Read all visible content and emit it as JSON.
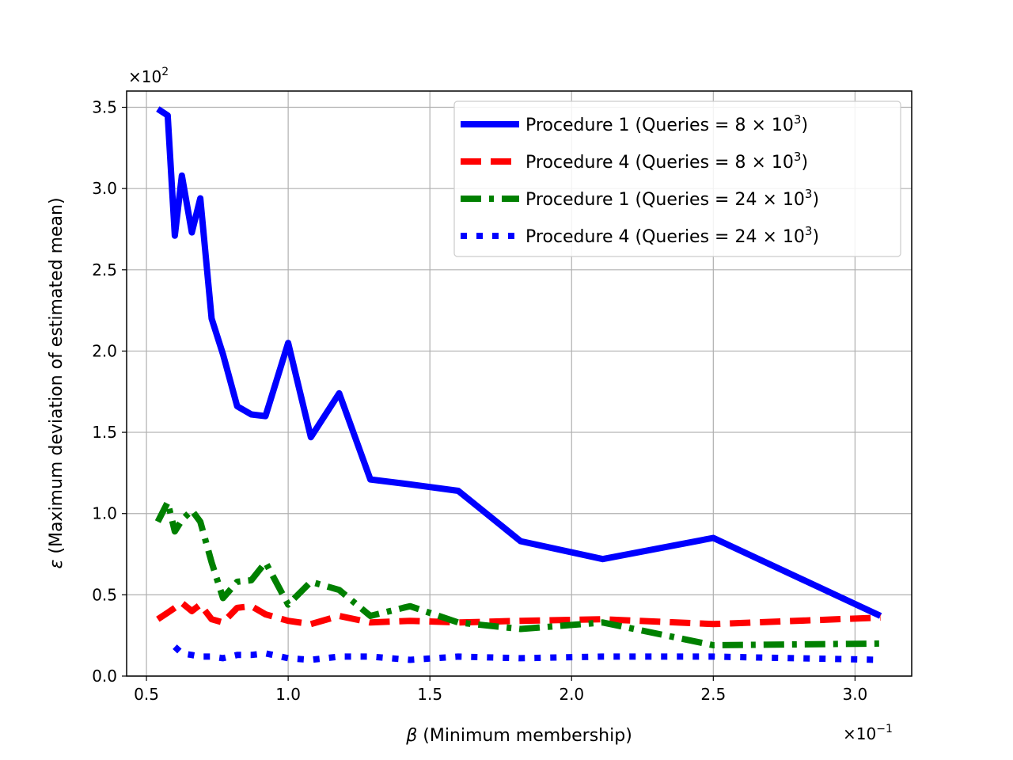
{
  "chart_data": {
    "type": "line",
    "xlabel_symbol": "β",
    "xlabel": "(Minimum membership)",
    "ylabel_symbol": "ε",
    "ylabel": "(Maximum deviation of estimated mean)",
    "x_multiplier": "×10",
    "x_multiplier_exp": "−1",
    "y_multiplier": "×10",
    "y_multiplier_exp": "2",
    "xlim": [
      0.43,
      3.2
    ],
    "ylim": [
      0.0,
      3.6
    ],
    "xticks": [
      0.5,
      1.0,
      1.5,
      2.0,
      2.5,
      3.0
    ],
    "xtick_labels": [
      "0.5",
      "1.0",
      "1.5",
      "2.0",
      "2.5",
      "3.0"
    ],
    "yticks": [
      0.0,
      0.5,
      1.0,
      1.5,
      2.0,
      2.5,
      3.0,
      3.5
    ],
    "ytick_labels": [
      "0.0",
      "0.5",
      "1.0",
      "1.5",
      "2.0",
      "2.5",
      "3.0",
      "3.5"
    ],
    "grid": true,
    "legend_position": "top-right",
    "series": [
      {
        "name": "Procedure 1 (Queries = 8 × 10",
        "name_exp": "3",
        "name_tail": ")",
        "color": "#0000ff",
        "style": "solid",
        "x": [
          0.54,
          0.575,
          0.6,
          0.625,
          0.66,
          0.69,
          0.73,
          0.77,
          0.82,
          0.87,
          0.92,
          1.0,
          1.08,
          1.18,
          1.29,
          1.43,
          1.6,
          1.82,
          2.11,
          2.5,
          3.09
        ],
        "y": [
          3.49,
          3.45,
          2.71,
          3.08,
          2.73,
          2.94,
          2.2,
          1.98,
          1.66,
          1.61,
          1.6,
          2.05,
          1.47,
          1.74,
          1.21,
          1.18,
          1.14,
          0.83,
          0.72,
          0.85,
          0.37
        ]
      },
      {
        "name": "Procedure 4 (Queries = 8 × 10",
        "name_exp": "3",
        "name_tail": ")",
        "color": "#ff0000",
        "style": "dashed",
        "x": [
          0.54,
          0.575,
          0.6,
          0.625,
          0.66,
          0.69,
          0.73,
          0.77,
          0.82,
          0.87,
          0.92,
          1.0,
          1.08,
          1.18,
          1.29,
          1.43,
          1.6,
          1.82,
          2.11,
          2.5,
          3.09
        ],
        "y": [
          0.35,
          0.39,
          0.42,
          0.45,
          0.4,
          0.44,
          0.35,
          0.33,
          0.42,
          0.43,
          0.38,
          0.34,
          0.32,
          0.37,
          0.33,
          0.34,
          0.33,
          0.34,
          0.35,
          0.32,
          0.36
        ]
      },
      {
        "name": "Procedure 1 (Queries = 24 × 10",
        "name_exp": "3",
        "name_tail": ")",
        "color": "#008000",
        "style": "dashdot",
        "x": [
          0.54,
          0.575,
          0.6,
          0.625,
          0.66,
          0.69,
          0.73,
          0.77,
          0.82,
          0.87,
          0.92,
          1.0,
          1.08,
          1.18,
          1.29,
          1.43,
          1.6,
          1.82,
          2.11,
          2.5,
          3.09
        ],
        "y": [
          0.95,
          1.07,
          0.89,
          0.96,
          1.02,
          0.95,
          0.7,
          0.48,
          0.58,
          0.59,
          0.7,
          0.44,
          0.58,
          0.53,
          0.37,
          0.43,
          0.33,
          0.29,
          0.33,
          0.19,
          0.2
        ]
      },
      {
        "name": "Procedure 4 (Queries = 24 × 10",
        "name_exp": "3",
        "name_tail": ")",
        "color": "#0000ff",
        "style": "dotted",
        "x": [
          0.6,
          0.625,
          0.66,
          0.69,
          0.73,
          0.77,
          0.82,
          0.87,
          0.92,
          1.0,
          1.08,
          1.18,
          1.29,
          1.43,
          1.6,
          1.82,
          2.11,
          2.5,
          3.09
        ],
        "y": [
          0.18,
          0.14,
          0.13,
          0.12,
          0.12,
          0.11,
          0.13,
          0.13,
          0.14,
          0.11,
          0.1,
          0.12,
          0.12,
          0.1,
          0.12,
          0.11,
          0.12,
          0.12,
          0.1
        ]
      }
    ]
  }
}
